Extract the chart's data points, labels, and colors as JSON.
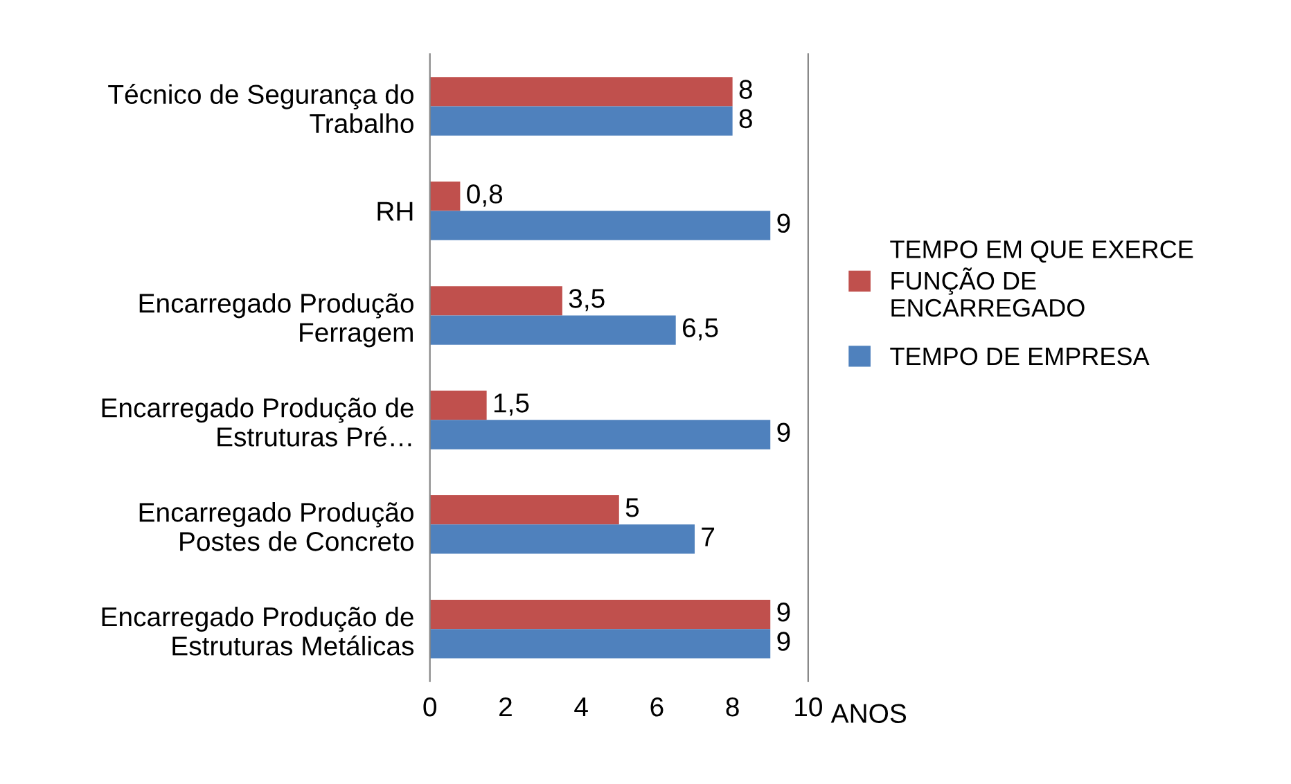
{
  "chart_data": {
    "type": "bar",
    "orientation": "horizontal",
    "categories": [
      "Técnico de Segurança do Trabalho",
      "RH",
      "Encarregado Produção Ferragem",
      "Encarregado Produção de Estruturas Pré…",
      "Encarregado Produção Postes de Concreto",
      "Encarregado Produção de Estruturas Metálicas"
    ],
    "series": [
      {
        "name": "TEMPO EM QUE EXERCE FUNÇÃO DE ENCARREGADO",
        "color": "#c0504d",
        "values": [
          8,
          0.8,
          3.5,
          1.5,
          5,
          9
        ],
        "value_labels": [
          "8",
          "0,8",
          "3,5",
          "1,5",
          "5",
          "9"
        ]
      },
      {
        "name": "TEMPO DE EMPRESA",
        "color": "#4f81bd",
        "values": [
          8,
          9,
          6.5,
          9,
          7,
          9
        ],
        "value_labels": [
          "8",
          "9",
          "6,5",
          "9",
          "7",
          "9"
        ]
      }
    ],
    "xlabel": "ANOS",
    "xlim": [
      0,
      10
    ],
    "xticks": [
      0,
      2,
      4,
      6,
      8,
      10
    ],
    "grid": false,
    "legend": "right"
  }
}
